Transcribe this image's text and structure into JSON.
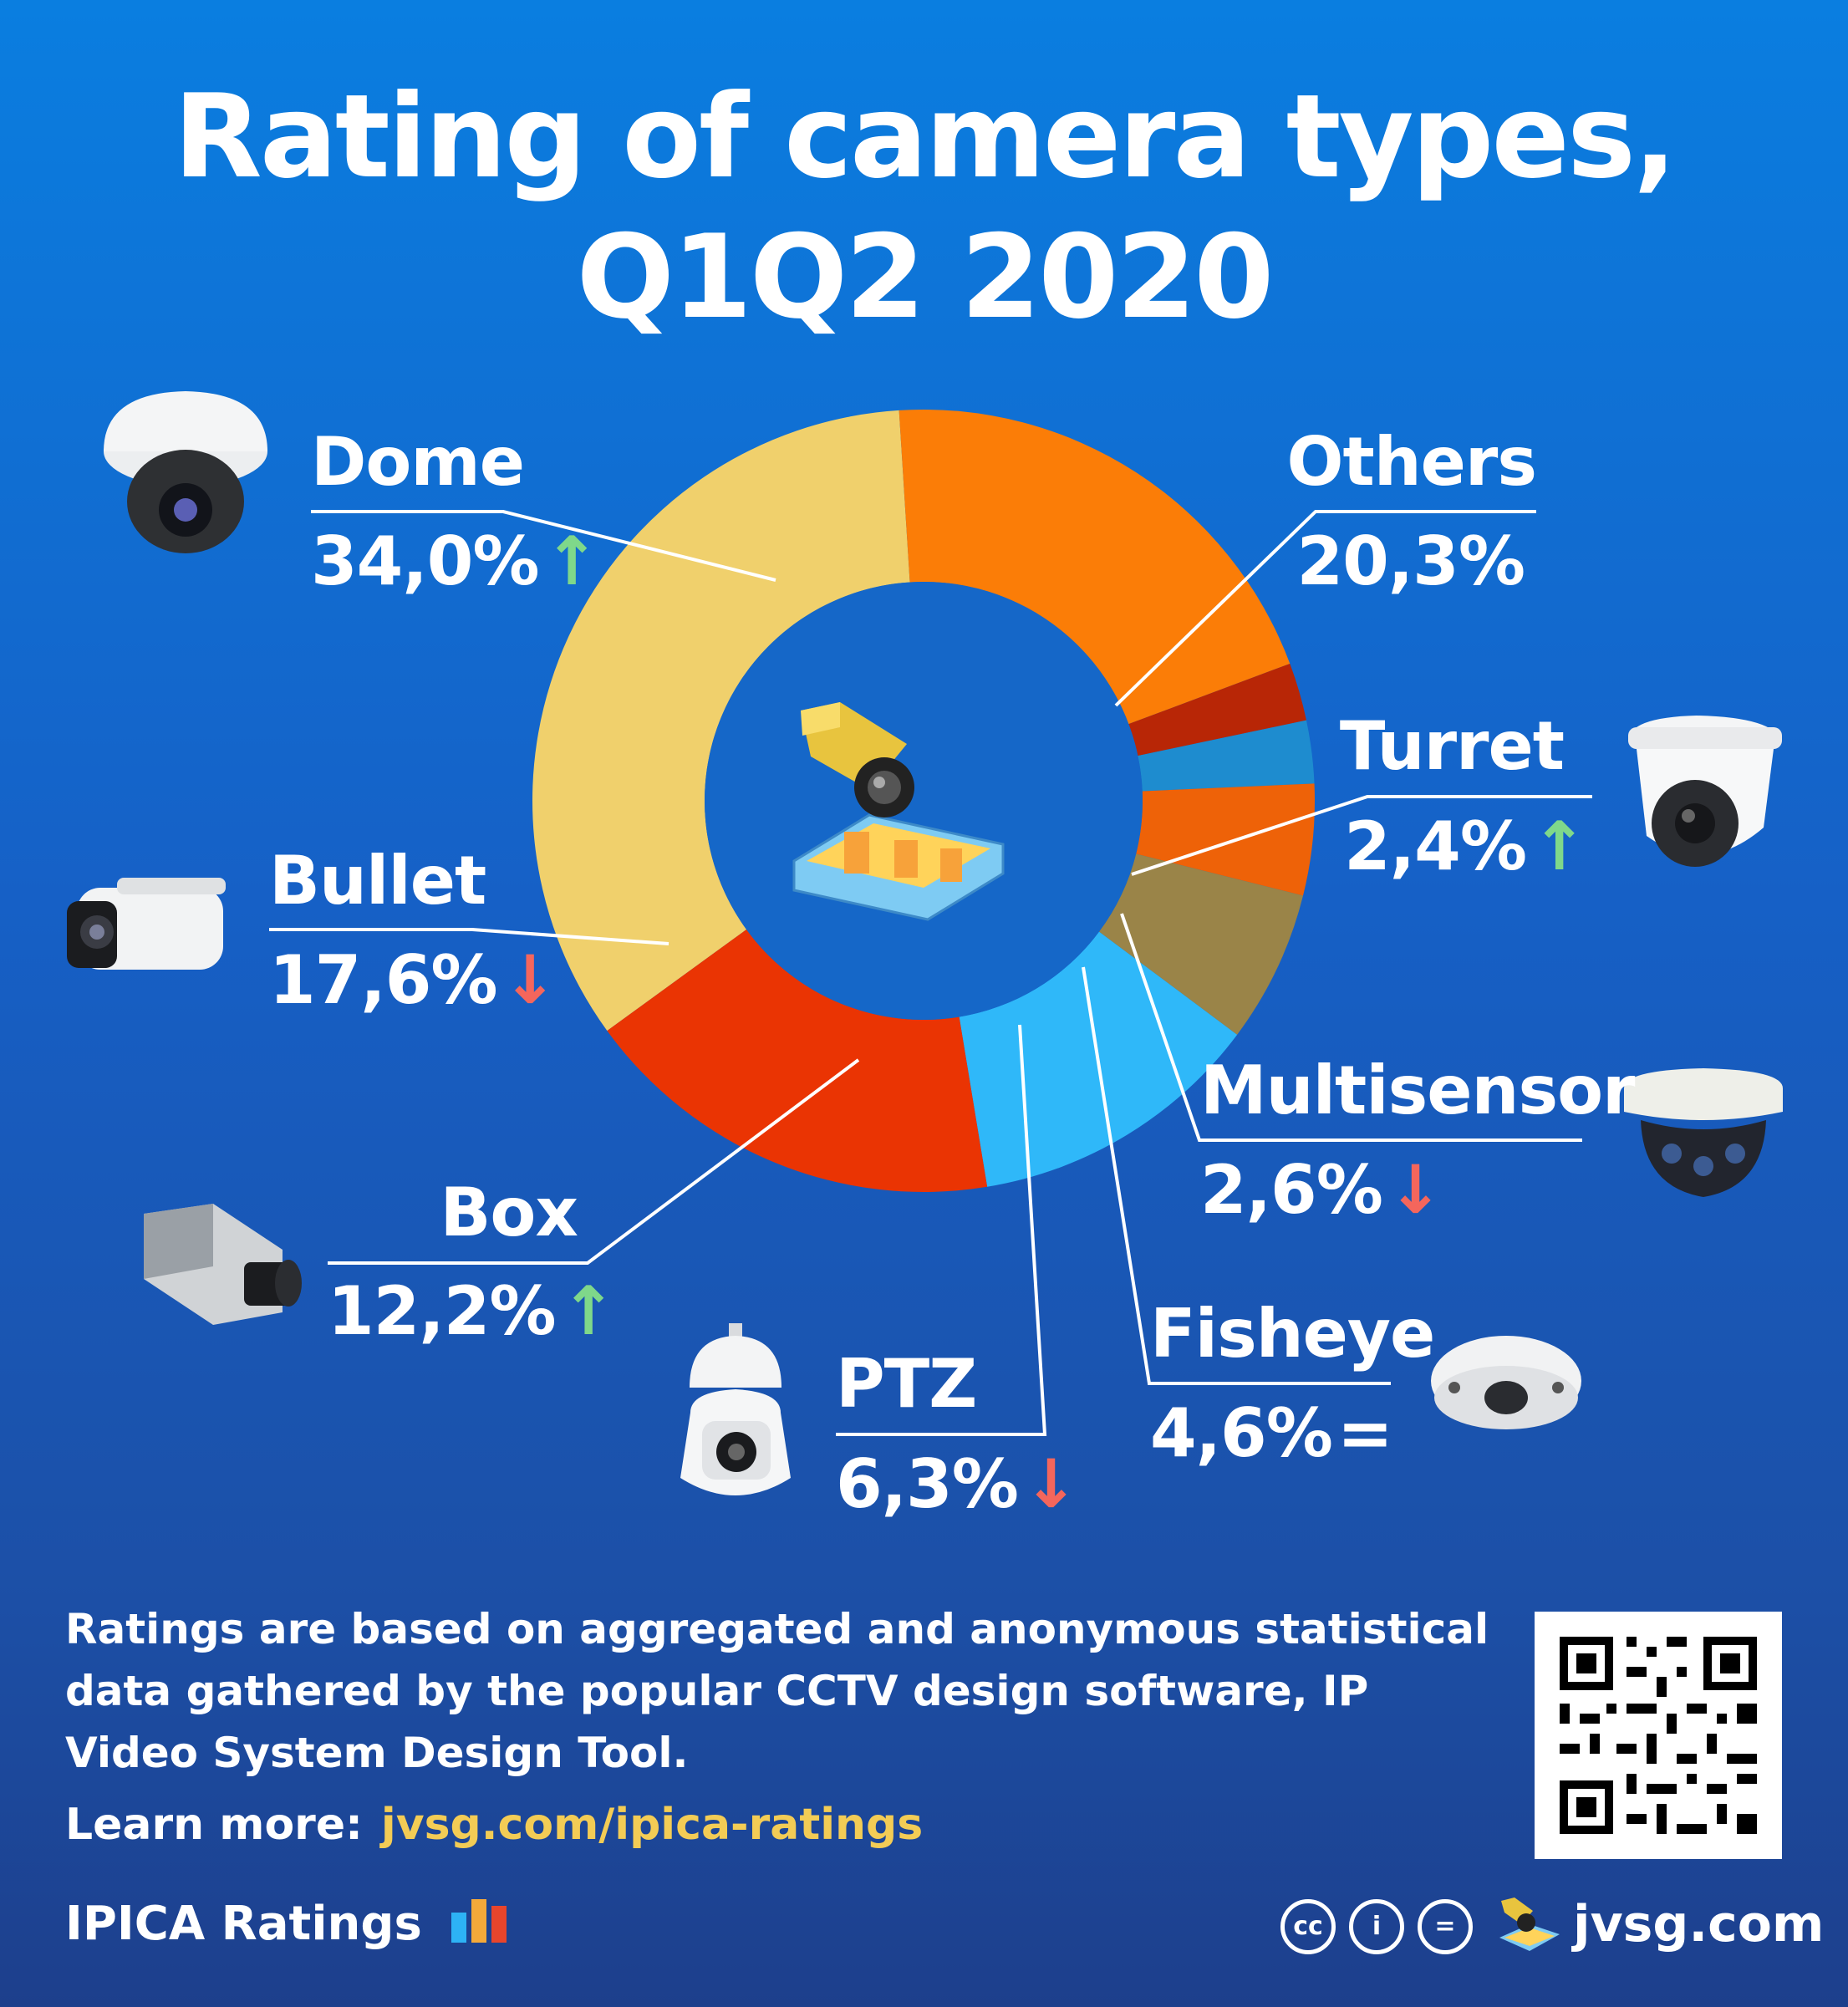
{
  "title": {
    "line1": "Rating of camera types,",
    "line2": "Q1Q2 2020"
  },
  "chart_data": {
    "type": "pie",
    "donut": true,
    "categories": [
      "Dome",
      "Others",
      "Turret",
      "Multisensor",
      "Fisheye",
      "PTZ",
      "Box",
      "Bullet"
    ],
    "values": [
      34.0,
      20.3,
      2.4,
      2.6,
      4.6,
      6.3,
      12.2,
      17.6
    ],
    "value_labels": [
      "34,0%",
      "20,3%",
      "2,4%",
      "2,6%",
      "4,6%",
      "6,3%",
      "12,2%",
      "17,6%"
    ],
    "trends": [
      "up",
      "none",
      "up",
      "down",
      "equal",
      "down",
      "up",
      "down"
    ],
    "colors": [
      "#f0d06c",
      "#fb7d07",
      "#b82606",
      "#1e8ccf",
      "#ee6208",
      "#9a8448",
      "#2fb8f9",
      "#ea3403"
    ]
  },
  "labels": {
    "dome": {
      "name": "Dome",
      "value": "34,0%"
    },
    "others": {
      "name": "Others",
      "value": "20,3%"
    },
    "turret": {
      "name": "Turret",
      "value": "2,4%"
    },
    "multisensor": {
      "name": "Multisensor",
      "value": "2,6%"
    },
    "fisheye": {
      "name": "Fisheye",
      "value": "4,6%"
    },
    "ptz": {
      "name": "PTZ",
      "value": "6,3%"
    },
    "box": {
      "name": "Box",
      "value": "12,2%"
    },
    "bullet": {
      "name": "Bullet",
      "value": "17,6%"
    }
  },
  "arrows": {
    "up": "↑",
    "down": "↓",
    "equal": "="
  },
  "footer": {
    "note": "Ratings are based on aggregated and anonymous statistical data gathered by the popular CCTV design software, IP Video System Design Tool.",
    "learn_more_label": "Learn more:",
    "learn_more_link": "jvsg.com/ipica-ratings",
    "brand": "IPICA Ratings",
    "site": "jvsg.com"
  },
  "license_icons": {
    "cc": "cc",
    "by": "i",
    "nd": "="
  },
  "icons": [
    "dome-camera-icon",
    "others-camera-icon",
    "turret-camera-icon",
    "bullet-camera-icon",
    "multisensor-camera-icon",
    "box-camera-icon",
    "ptz-camera-icon",
    "fisheye-camera-icon",
    "qr-code-icon",
    "bar-chart-logo-icon",
    "jvsg-logo-icon"
  ]
}
